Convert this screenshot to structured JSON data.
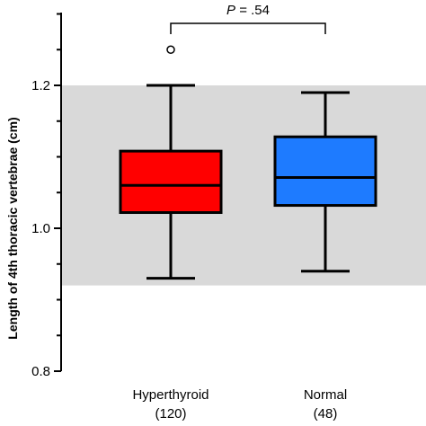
{
  "chart_data": {
    "type": "box",
    "ylabel": "Length of 4th thoracic vertebrae (cm)",
    "ylim": [
      0.8,
      1.33
    ],
    "yticks": [
      0.8,
      1.0,
      1.2
    ],
    "ytick_labels": [
      "0.8",
      "1.0",
      "1.2"
    ],
    "reference_band": [
      0.92,
      1.2
    ],
    "reference_band_color": "#d9d9d9",
    "categories": [
      {
        "name": "Hyperthyroid",
        "n_label": "(120)",
        "color": "#ff0000",
        "whisker_low": 0.93,
        "q1": 1.022,
        "median": 1.06,
        "q3": 1.108,
        "whisker_high": 1.2,
        "outliers": [
          1.25
        ]
      },
      {
        "name": "Normal",
        "n_label": "(48)",
        "color": "#1e7bff",
        "whisker_low": 0.94,
        "q1": 1.032,
        "median": 1.071,
        "q3": 1.128,
        "whisker_high": 1.19,
        "outliers": []
      }
    ],
    "significance": {
      "italic": "P",
      "rest": " = .54"
    }
  }
}
